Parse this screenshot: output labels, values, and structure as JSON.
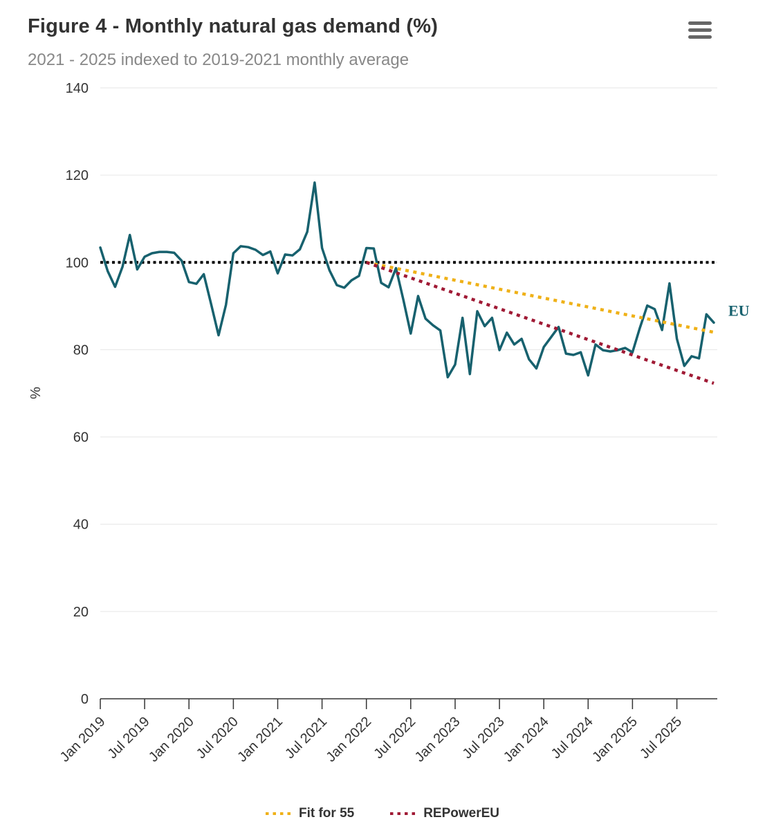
{
  "header": {
    "title": "Figure 4 - Monthly natural gas demand (%)",
    "subtitle": "2021 - 2025 indexed to 2019-2021 monthly average",
    "menu_icon": "hamburger-context-menu"
  },
  "chart_data": {
    "type": "line",
    "title": "Figure 4 - Monthly natural gas demand (%)",
    "subtitle": "2021 - 2025 indexed to 2019-2021 monthly average",
    "ylabel": "%",
    "ylim": [
      0,
      140
    ],
    "y_ticks": [
      0,
      20,
      40,
      60,
      80,
      100,
      120,
      140
    ],
    "grid": "horizontal",
    "x_start": "Jan 2019",
    "x_end": "Dec 2025",
    "x_tick_month_step": 6,
    "x_tick_labels": [
      "Jan 2019",
      "Jul 2019",
      "Jan 2020",
      "Jul 2020",
      "Jan 2021",
      "Jul 2021",
      "Jan 2022",
      "Jul 2022",
      "Jan 2023",
      "Jul 2023",
      "Jan 2024",
      "Jul 2024",
      "Jan 2025",
      "Jul 2025"
    ],
    "series": [
      {
        "name": "EU",
        "style": "solid",
        "color": "#17616e",
        "end_label": "EU",
        "values": [
          103.4,
          98.0,
          94.4,
          99.0,
          106.3,
          98.4,
          101.3,
          102.1,
          102.4,
          102.4,
          102.2,
          100.4,
          95.5,
          95.1,
          97.3,
          90.4,
          83.3,
          90.3,
          102.1,
          103.7,
          103.5,
          102.9,
          101.7,
          102.5,
          97.5,
          101.8,
          101.6,
          103.0,
          107.0,
          118.3,
          103.3,
          98.2,
          94.8,
          94.2,
          95.9,
          96.9,
          103.3,
          103.2,
          95.3,
          94.3,
          98.7,
          91.4,
          83.7,
          92.3,
          87.1,
          85.6,
          84.4,
          73.7,
          76.6,
          87.3,
          74.4,
          88.8,
          85.4,
          87.3,
          79.9,
          83.9,
          81.2,
          82.5,
          77.8,
          75.7,
          80.6,
          82.9,
          85.2,
          79.1,
          78.8,
          79.4,
          74.1,
          81.2,
          79.9,
          79.6,
          79.9,
          80.4,
          79.4,
          85.0,
          90.1,
          89.3,
          84.5,
          95.2,
          82.5,
          76.3,
          78.5,
          78.0,
          88.1,
          86.2
        ]
      }
    ],
    "reference_lines": [
      {
        "name": "2019-2021 monthly average baseline",
        "value": 100,
        "color": "#000000",
        "style": "dotted"
      }
    ],
    "trend_lines": [
      {
        "name": "Fit for 55",
        "color": "#efb118",
        "style": "dotted",
        "start_index": 36,
        "start_value": 100,
        "end_index": 83,
        "end_value": 84.0
      },
      {
        "name": "REPowerEU",
        "color": "#a01a35",
        "style": "dotted",
        "start_index": 36,
        "start_value": 100,
        "end_index": 83,
        "end_value": 72.3
      }
    ],
    "legend": {
      "position": "bottom",
      "items": [
        {
          "label": "Fit for 55",
          "color": "#efb118"
        },
        {
          "label": "REPowerEU",
          "color": "#a01a35"
        }
      ]
    },
    "series_end_label": {
      "text": "EU",
      "color": "#17616e"
    },
    "colors": {
      "grid": "#e6e6e6",
      "axis": "#333333",
      "tick_label": "#333333",
      "title": "#333333",
      "subtitle": "#888888",
      "menu_icon": "#666666"
    }
  }
}
